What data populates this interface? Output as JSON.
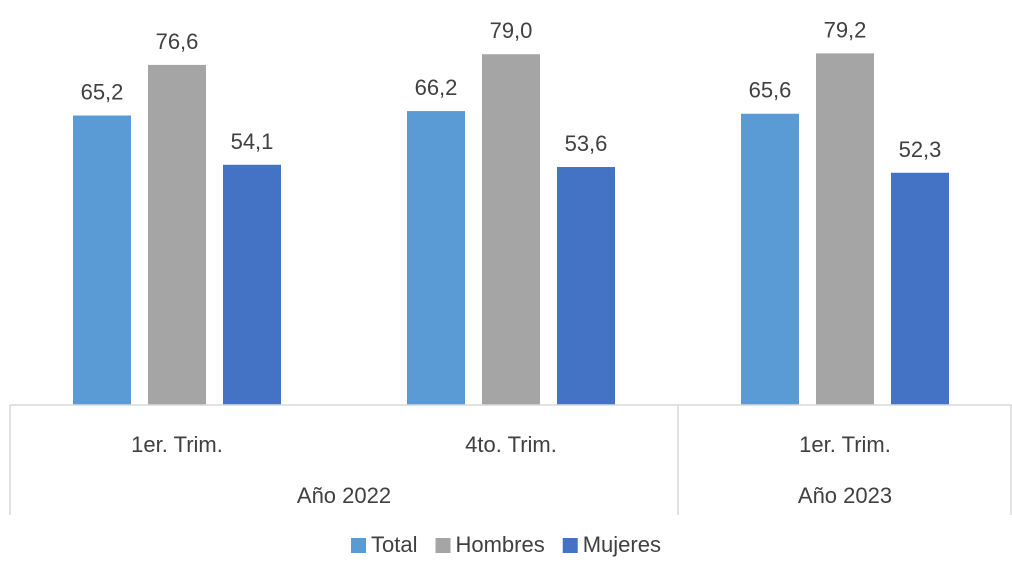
{
  "chart_data": {
    "type": "bar",
    "title": "",
    "xlabel": "",
    "ylabel": "",
    "ylim": [
      0,
      80
    ],
    "grid": false,
    "legend_position": "bottom",
    "value_format": "comma-decimal-1",
    "categories": [
      "1er. Trim.",
      "4to. Trim.",
      "1er. Trim."
    ],
    "groups": [
      {
        "label": "Año 2022",
        "span": 2
      },
      {
        "label": "Año 2023",
        "span": 1
      }
    ],
    "series": [
      {
        "name": "Total",
        "color": "#5B9BD5",
        "values": [
          65.2,
          66.2,
          65.6
        ]
      },
      {
        "name": "Hombres",
        "color": "#A5A5A5",
        "values": [
          76.6,
          79.0,
          79.2
        ]
      },
      {
        "name": "Mujeres",
        "color": "#4472C4",
        "values": [
          54.1,
          53.6,
          52.3
        ]
      }
    ],
    "data_labels": [
      [
        "65,2",
        "76,6",
        "54,1"
      ],
      [
        "66,2",
        "79,0",
        "53,6"
      ],
      [
        "65,6",
        "79,2",
        "52,3"
      ]
    ]
  }
}
